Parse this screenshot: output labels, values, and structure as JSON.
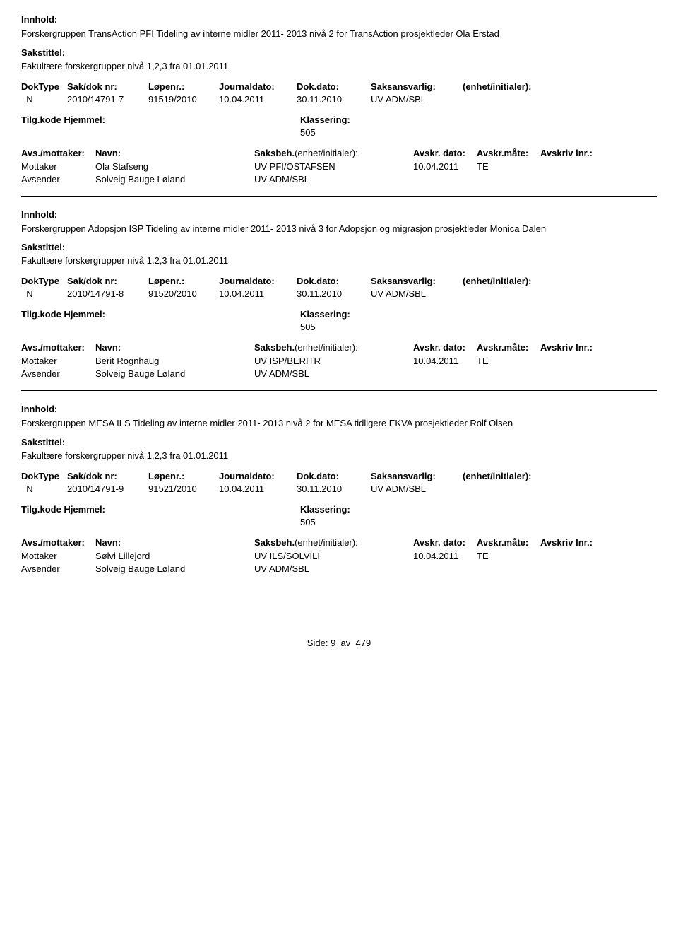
{
  "labels": {
    "innhold": "Innhold:",
    "sakstittel": "Sakstittel:",
    "doktype": "DokType",
    "sakdok": "Sak/dok nr:",
    "lopenr": "Løpenr.:",
    "journaldato": "Journaldato:",
    "dokdato": "Dok.dato:",
    "saksansvarlig": "Saksansvarlig:",
    "enhet": "(enhet/initialer):",
    "tilgkode": "Tilg.kode",
    "hjemmel": "Hjemmel:",
    "klassering": "Klassering:",
    "avsmottaker": "Avs./mottaker:",
    "navn": "Navn:",
    "saksbeh": "Saksbeh.",
    "saksbeh_enhet": "(enhet/initialer):",
    "avskrdato": "Avskr. dato:",
    "avskrmate": "Avskr.måte:",
    "avskrivlnr": "Avskriv lnr.:",
    "mottaker": "Mottaker",
    "avsender": "Avsender"
  },
  "records": [
    {
      "innhold": "Forskergruppen TransAction PFI Tideling av interne midler  2011- 2013 nivå 2 for TransAction prosjektleder Ola Erstad",
      "sakstittel": "Fakultære forskergrupper nivå 1,2,3 fra 01.01.2011",
      "doktype": "N",
      "sakdok": "2010/14791-7",
      "lopenr": "91519/2010",
      "journaldato": "10.04.2011",
      "dokdato": "30.11.2010",
      "saksansvarlig": "UV ADM/SBL",
      "klassering": "505",
      "parties": [
        {
          "role": "Mottaker",
          "navn": "Ola Stafseng",
          "saksbeh": "UV PFI/OSTAFSEN",
          "avskrdato": "10.04.2011",
          "avskrmate": "TE"
        },
        {
          "role": "Avsender",
          "navn": "Solveig Bauge Løland",
          "saksbeh": "UV ADM/SBL",
          "avskrdato": "",
          "avskrmate": ""
        }
      ]
    },
    {
      "innhold": "Forskergruppen Adopsjon ISP Tideling av interne midler  2011- 2013 nivå 3 for Adopsjon og migrasjon prosjektleder Monica Dalen",
      "sakstittel": "Fakultære forskergrupper nivå 1,2,3 fra 01.01.2011",
      "doktype": "N",
      "sakdok": "2010/14791-8",
      "lopenr": "91520/2010",
      "journaldato": "10.04.2011",
      "dokdato": "30.11.2010",
      "saksansvarlig": "UV ADM/SBL",
      "klassering": "505",
      "parties": [
        {
          "role": "Mottaker",
          "navn": "Berit Rognhaug",
          "saksbeh": "UV ISP/BERITR",
          "avskrdato": "10.04.2011",
          "avskrmate": "TE"
        },
        {
          "role": "Avsender",
          "navn": "Solveig Bauge Løland",
          "saksbeh": "UV ADM/SBL",
          "avskrdato": "",
          "avskrmate": ""
        }
      ]
    },
    {
      "innhold": "Forskergruppen MESA  ILS Tideling av interne midler  2011- 2013 nivå 2 for MESA tidligere EKVA prosjektleder Rolf Olsen",
      "sakstittel": "Fakultære forskergrupper nivå 1,2,3 fra 01.01.2011",
      "doktype": "N",
      "sakdok": "2010/14791-9",
      "lopenr": "91521/2010",
      "journaldato": "10.04.2011",
      "dokdato": "30.11.2010",
      "saksansvarlig": "UV ADM/SBL",
      "klassering": "505",
      "parties": [
        {
          "role": "Mottaker",
          "navn": "Sølvi Lillejord",
          "saksbeh": "UV ILS/SOLVILI",
          "avskrdato": "10.04.2011",
          "avskrmate": "TE"
        },
        {
          "role": "Avsender",
          "navn": "Solveig Bauge Løland",
          "saksbeh": "UV ADM/SBL",
          "avskrdato": "",
          "avskrmate": ""
        }
      ]
    }
  ],
  "footer": {
    "side_label": "Side:",
    "page": "9",
    "av": "av",
    "total": "479"
  }
}
